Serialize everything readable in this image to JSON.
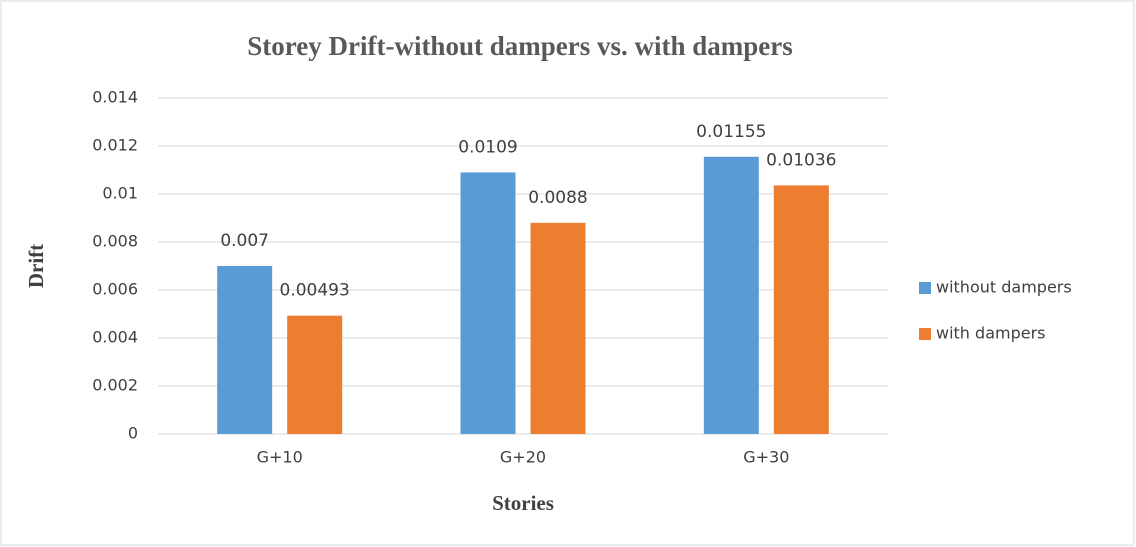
{
  "chart_data": {
    "type": "bar",
    "title": "Storey Drift-without dampers vs. with dampers",
    "x_label": "Stories",
    "y_label": "Drift",
    "categories": [
      "G+10",
      "G+20",
      "G+30"
    ],
    "series": [
      {
        "name": "without dampers",
        "color": "#5b9bd5",
        "values": [
          0.007,
          0.0109,
          0.01155
        ]
      },
      {
        "name": "with dampers",
        "color": "#ed7d31",
        "values": [
          0.00493,
          0.0088,
          0.01036
        ]
      }
    ],
    "ylim": [
      0,
      0.014
    ],
    "yticks": [
      0,
      0.002,
      0.004,
      0.006,
      0.008,
      0.01,
      0.012,
      0.014
    ],
    "grid": true,
    "legend": "right"
  }
}
